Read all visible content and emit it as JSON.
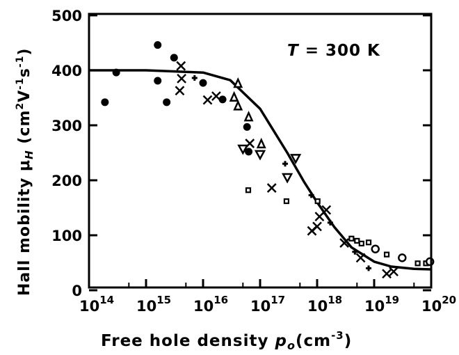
{
  "chart_data": {
    "type": "scatter",
    "title": "",
    "annotation": "T = 300 K",
    "annotation_parts": {
      "symbol": "T",
      "rest": " = 300 K"
    },
    "xlabel": {
      "text": "Free hole density ",
      "symbol": "p",
      "sub": "o",
      "unit": "(cm",
      "unit_exp": "-3",
      "unit_close": ")"
    },
    "ylabel": {
      "text": "Hall mobility ",
      "symbol": "μ",
      "sub": "H",
      "unit": " (cm",
      "e1": "2",
      "v": "V",
      "e2": "-1",
      "s": "s",
      "e3": "-1",
      "close": ")"
    },
    "xscale": "log",
    "xlim": [
      100000000000000.0,
      1e+20
    ],
    "ylim": [
      0,
      500
    ],
    "xticks": [
      {
        "base": "10",
        "exp": "14"
      },
      {
        "base": "10",
        "exp": "15"
      },
      {
        "base": "10",
        "exp": "16"
      },
      {
        "base": "10",
        "exp": "17"
      },
      {
        "base": "10",
        "exp": "18"
      },
      {
        "base": "10",
        "exp": "19"
      },
      {
        "base": "10",
        "exp": "20"
      }
    ],
    "yticks": [
      "0",
      "100",
      "200",
      "300",
      "400",
      "500"
    ],
    "grid": false,
    "series": [
      {
        "marker": "filled-circle",
        "points": [
          [
            190000000000000.0,
            342
          ],
          [
            300000000000000.0,
            396
          ],
          [
            1600000000000000.0,
            381
          ],
          [
            1600000000000000.0,
            446
          ],
          [
            2300000000000000.0,
            342
          ],
          [
            3100000000000000.0,
            423
          ],
          [
            1e+16,
            377
          ],
          [
            2.2e+16,
            347
          ],
          [
            5.9e+16,
            297
          ],
          [
            6.3e+16,
            252
          ]
        ]
      },
      {
        "marker": "cross",
        "points": [
          [
            4100000000000000.0,
            408
          ],
          [
            4200000000000000.0,
            385
          ],
          [
            3900000000000000.0,
            363
          ],
          [
            1.2e+16,
            346
          ],
          [
            1.7e+16,
            353
          ],
          [
            6.6e+16,
            267
          ],
          [
            1.6e+17,
            186
          ],
          [
            1.1e+18,
            134
          ],
          [
            1e+18,
            116
          ],
          [
            8.1e+17,
            108
          ],
          [
            1.45e+18,
            146
          ],
          [
            3e+18,
            86
          ],
          [
            5.8e+18,
            59
          ],
          [
            1.66e+19,
            30
          ],
          [
            2.2e+19,
            34
          ]
        ]
      },
      {
        "marker": "triangle-up",
        "points": [
          [
            4.1e+16,
            376
          ],
          [
            3.5e+16,
            351
          ],
          [
            4.1e+16,
            335
          ],
          [
            6.3e+16,
            315
          ],
          [
            1.05e+17,
            266
          ]
        ]
      },
      {
        "marker": "triangle-down",
        "points": [
          [
            5e+16,
            257
          ],
          [
            1e+17,
            247
          ],
          [
            4.2e+17,
            240
          ],
          [
            3e+17,
            205
          ]
        ]
      },
      {
        "marker": "open-square",
        "points": [
          [
            6.2e+16,
            182
          ],
          [
            2.9e+17,
            162
          ],
          [
            1.02e+18,
            162
          ],
          [
            4e+18,
            94
          ],
          [
            5e+18,
            90
          ],
          [
            6e+18,
            85
          ],
          [
            8e+18,
            87
          ],
          [
            1.66e+19,
            65
          ],
          [
            5.8e+19,
            49
          ],
          [
            8.1e+19,
            49
          ]
        ]
      },
      {
        "marker": "open-circle",
        "points": [
          [
            1.05e+19,
            75
          ],
          [
            3.1e+19,
            59
          ],
          [
            9.5e+19,
            52
          ]
        ]
      },
      {
        "marker": "small-plus",
        "points": [
          [
            7100000000000000.0,
            386
          ],
          [
            2.75e+17,
            230
          ],
          [
            7.9e+17,
            173
          ],
          [
            1.7e+18,
            123
          ],
          [
            4.6e+18,
            70
          ],
          [
            8e+18,
            40
          ]
        ]
      }
    ],
    "fit_curve": {
      "x": [
        100000000000000.0,
        1000000000000000.0,
        1e+16,
        3e+16,
        1e+17,
        3e+17,
        6e+17,
        1e+18,
        2e+18,
        4e+18,
        1e+19,
        2e+19,
        5e+19,
        1e+20
      ],
      "y": [
        400,
        400,
        396,
        382,
        330,
        250,
        196,
        160,
        115,
        78,
        52,
        43,
        39,
        38
      ]
    }
  }
}
